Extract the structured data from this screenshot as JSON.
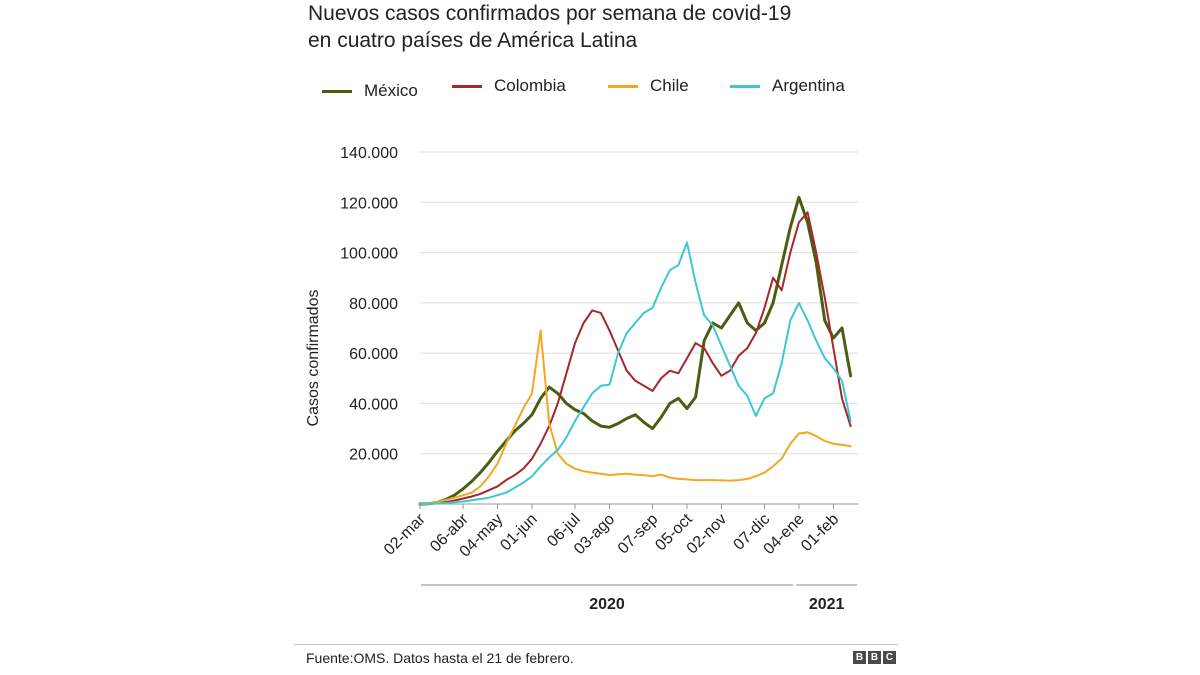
{
  "title_line1": "Nuevos casos confirmados por semana de covid-19",
  "title_line2": "en cuatro países de América Latina",
  "source": "Fuente:OMS. Datos hasta el 21 de febrero.",
  "logo": [
    "B",
    "B",
    "C"
  ],
  "chart_data": {
    "type": "line",
    "ylabel": "Casos confirmados",
    "ylim": [
      0,
      140000
    ],
    "yticks": [
      20000,
      40000,
      60000,
      80000,
      100000,
      120000,
      140000
    ],
    "ytick_labels": [
      "20.000",
      "40.000",
      "60.000",
      "80.000",
      "100.000",
      "120.000",
      "140.000"
    ],
    "grid": true,
    "x_start": "2020-03-02",
    "x_end": "2021-02-21",
    "xticks": [
      {
        "date": "2020-03-02",
        "label": "02-mar"
      },
      {
        "date": "2020-04-06",
        "label": "06-abr"
      },
      {
        "date": "2020-05-04",
        "label": "04-may"
      },
      {
        "date": "2020-06-01",
        "label": "01-jun"
      },
      {
        "date": "2020-07-06",
        "label": "06-jul"
      },
      {
        "date": "2020-08-03",
        "label": "03-ago"
      },
      {
        "date": "2020-09-07",
        "label": "07-sep"
      },
      {
        "date": "2020-10-05",
        "label": "05-oct"
      },
      {
        "date": "2020-11-02",
        "label": "02-nov"
      },
      {
        "date": "2020-12-07",
        "label": "07-dic"
      },
      {
        "date": "2021-01-04",
        "label": "04-ene"
      },
      {
        "date": "2021-02-01",
        "label": "01-feb"
      }
    ],
    "years": [
      {
        "label": "2020",
        "from": "2020-03-02",
        "to": "2020-12-31"
      },
      {
        "label": "2021",
        "from": "2021-01-01",
        "to": "2021-02-21"
      }
    ],
    "x": [
      "2020-03-02",
      "2020-03-09",
      "2020-03-16",
      "2020-03-23",
      "2020-03-30",
      "2020-04-06",
      "2020-04-13",
      "2020-04-20",
      "2020-04-27",
      "2020-05-04",
      "2020-05-11",
      "2020-05-18",
      "2020-05-25",
      "2020-06-01",
      "2020-06-08",
      "2020-06-15",
      "2020-06-22",
      "2020-06-29",
      "2020-07-06",
      "2020-07-13",
      "2020-07-20",
      "2020-07-27",
      "2020-08-03",
      "2020-08-10",
      "2020-08-17",
      "2020-08-24",
      "2020-08-31",
      "2020-09-07",
      "2020-09-14",
      "2020-09-21",
      "2020-09-28",
      "2020-10-05",
      "2020-10-12",
      "2020-10-19",
      "2020-10-26",
      "2020-11-02",
      "2020-11-09",
      "2020-11-16",
      "2020-11-23",
      "2020-11-30",
      "2020-12-07",
      "2020-12-14",
      "2020-12-21",
      "2020-12-28",
      "2021-01-04",
      "2021-01-11",
      "2021-01-18",
      "2021-01-25",
      "2021-02-01",
      "2021-02-08",
      "2021-02-15"
    ],
    "series": [
      {
        "name": "México",
        "color": "#4a5e13",
        "values": [
          0,
          100,
          600,
          1800,
          3500,
          6000,
          9000,
          12500,
          16500,
          21000,
          25000,
          29000,
          32000,
          35500,
          42000,
          46500,
          44000,
          40000,
          37500,
          36000,
          33000,
          31000,
          30500,
          32000,
          34000,
          35500,
          32500,
          30000,
          34500,
          40000,
          42000,
          38000,
          42500,
          65000,
          72000,
          70000,
          75000,
          80000,
          72000,
          69000,
          72000,
          80000,
          95000,
          110000,
          122000,
          112000,
          96000,
          73000,
          66000,
          70000,
          51000
        ]
      },
      {
        "name": "Colombia",
        "color": "#a3272b",
        "values": [
          0,
          50,
          250,
          700,
          1400,
          2200,
          3000,
          4000,
          5500,
          7000,
          9500,
          11500,
          14000,
          18000,
          24000,
          31000,
          40000,
          52000,
          64000,
          72000,
          77000,
          76000,
          69000,
          61000,
          53000,
          49000,
          47000,
          45000,
          50000,
          53000,
          52000,
          58000,
          64000,
          62000,
          56000,
          51000,
          53000,
          59000,
          62000,
          68000,
          78000,
          90000,
          85000,
          100000,
          112000,
          116000,
          100000,
          82000,
          62000,
          42000,
          31000
        ]
      },
      {
        "name": "Chile",
        "color": "#f5a623",
        "values": [
          0,
          200,
          700,
          1600,
          2500,
          3500,
          4500,
          7000,
          11000,
          16000,
          24000,
          31000,
          38000,
          44000,
          69000,
          32000,
          20000,
          16000,
          14000,
          13000,
          12500,
          12000,
          11500,
          11800,
          12000,
          11700,
          11500,
          11000,
          11700,
          10500,
          10000,
          9800,
          9500,
          9500,
          9500,
          9400,
          9300,
          9500,
          10000,
          11000,
          12500,
          15000,
          18000,
          24000,
          28000,
          28500,
          27000,
          25000,
          24000,
          23500,
          23000
        ]
      },
      {
        "name": "Argentina",
        "color": "#3dc8d1",
        "values": [
          0,
          50,
          200,
          400,
          700,
          1000,
          1500,
          2000,
          2500,
          3500,
          4500,
          6500,
          8500,
          11000,
          15000,
          18500,
          21500,
          26500,
          33000,
          38500,
          44000,
          47000,
          47500,
          60000,
          68000,
          72000,
          76000,
          78000,
          86000,
          93000,
          95000,
          104000,
          88000,
          75000,
          71000,
          63000,
          55000,
          47000,
          43000,
          35000,
          42000,
          44000,
          56000,
          73000,
          80000,
          73000,
          65000,
          58000,
          54000,
          49000,
          33000
        ]
      }
    ]
  }
}
